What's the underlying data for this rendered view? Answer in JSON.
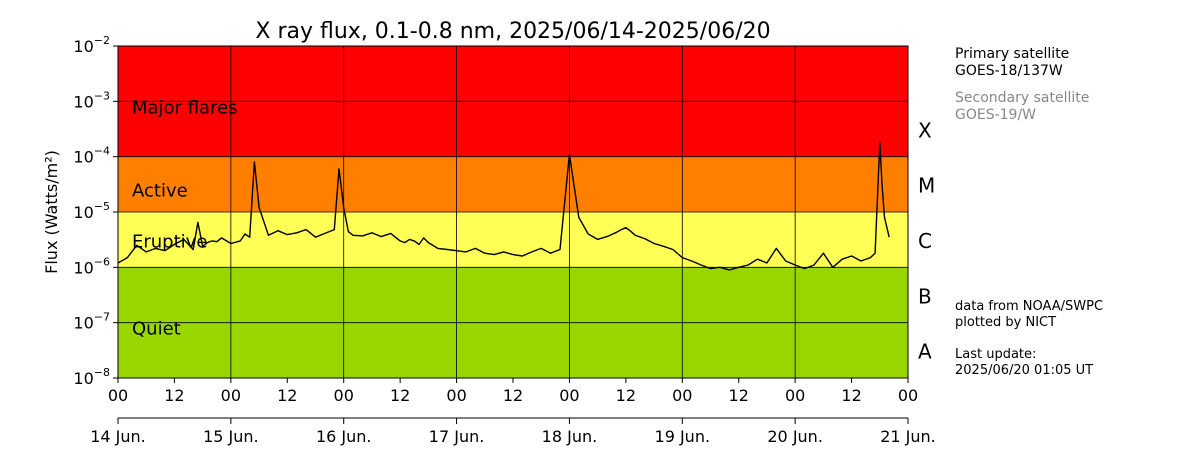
{
  "chart_data": {
    "type": "line",
    "title": "X ray flux, 0.1-0.8 nm, 2025/06/14-2025/06/20",
    "ylabel": "Flux (Watts/m²)",
    "y_scale": "log",
    "ylim": [
      1e-08,
      0.01
    ],
    "y_ticks": [
      {
        "value": 0.01,
        "base": "10",
        "exp": "−2"
      },
      {
        "value": 0.001,
        "base": "10",
        "exp": "−3"
      },
      {
        "value": 0.0001,
        "base": "10",
        "exp": "−4"
      },
      {
        "value": 1e-05,
        "base": "10",
        "exp": "−5"
      },
      {
        "value": 1e-06,
        "base": "10",
        "exp": "−6"
      },
      {
        "value": 1e-07,
        "base": "10",
        "exp": "−7"
      },
      {
        "value": 1e-08,
        "base": "10",
        "exp": "−8"
      }
    ],
    "xlim": [
      "2025-06-14 00:00",
      "2025-06-21 00:00"
    ],
    "x_tick_labels": [
      "00",
      "12",
      "00",
      "12",
      "00",
      "12",
      "00",
      "12",
      "00",
      "12",
      "00",
      "12",
      "00",
      "12",
      "00"
    ],
    "date_labels": [
      "14 Jun.",
      "15 Jun.",
      "16 Jun.",
      "17 Jun.",
      "18 Jun.",
      "19 Jun.",
      "20 Jun.",
      "21 Jun."
    ],
    "grid": true,
    "bands": [
      {
        "label": "Major flares",
        "from": 0.0001,
        "to": 0.01,
        "color": "#ff0000"
      },
      {
        "label": "Active",
        "from": 1e-05,
        "to": 0.0001,
        "color": "#ff7f00"
      },
      {
        "label": "Eruptive",
        "from": 1e-06,
        "to": 1e-05,
        "color": "#ffff55"
      },
      {
        "label": "Quiet",
        "from": 1e-08,
        "to": 1e-06,
        "color": "#99d600"
      }
    ],
    "classes": [
      {
        "label": "X",
        "center": 0.0003
      },
      {
        "label": "M",
        "center": 3e-05
      },
      {
        "label": "C",
        "center": 3e-06
      },
      {
        "label": "B",
        "center": 3e-07
      },
      {
        "label": "A",
        "center": 3e-08
      }
    ],
    "series": [
      {
        "color": "#000000",
        "x_hours": [
          0,
          2,
          4,
          6,
          8,
          10,
          12,
          14,
          16,
          17,
          18,
          19,
          20,
          21,
          22,
          24,
          26,
          27,
          28,
          29,
          30,
          32,
          34,
          36,
          38,
          40,
          42,
          44,
          46,
          47,
          48,
          49,
          50,
          52,
          54,
          56,
          58,
          60,
          61,
          62,
          63,
          64,
          65,
          66,
          68,
          70,
          72,
          74,
          76,
          78,
          80,
          82,
          84,
          86,
          88,
          90,
          92,
          94,
          96,
          98,
          100,
          102,
          104,
          106,
          107,
          108,
          109,
          110,
          112,
          114,
          116,
          118,
          120,
          122,
          124,
          126,
          128,
          130,
          132,
          134,
          136,
          138,
          140,
          142,
          144,
          146,
          148,
          150,
          152,
          154,
          156,
          158,
          160,
          161,
          162,
          162.5,
          163,
          164
        ],
        "y": [
          1.2e-06,
          1.5e-06,
          2.5e-06,
          1.9e-06,
          2.2e-06,
          2e-06,
          2.6e-06,
          3.2e-06,
          2.1e-06,
          6.5e-06,
          2.4e-06,
          2.8e-06,
          3e-06,
          2.9e-06,
          3.4e-06,
          2.7e-06,
          3e-06,
          4e-06,
          3.5e-06,
          8e-05,
          1.2e-05,
          3.8e-06,
          4.6e-06,
          3.9e-06,
          4.2e-06,
          4.8e-06,
          3.5e-06,
          4.1e-06,
          4.8e-06,
          6e-05,
          1.2e-05,
          4.4e-06,
          3.8e-06,
          3.7e-06,
          4.2e-06,
          3.6e-06,
          4.1e-06,
          3e-06,
          2.8e-06,
          3.2e-06,
          3e-06,
          2.6e-06,
          3.4e-06,
          2.8e-06,
          2.2e-06,
          2.1e-06,
          2e-06,
          1.9e-06,
          2.2e-06,
          1.8e-06,
          1.7e-06,
          1.9e-06,
          1.7e-06,
          1.6e-06,
          1.9e-06,
          2.2e-06,
          1.8e-06,
          2.1e-06,
          0.00011,
          8e-06,
          4e-06,
          3.2e-06,
          3.6e-06,
          4.3e-06,
          4.8e-06,
          5.2e-06,
          4.5e-06,
          3.8e-06,
          3.3e-06,
          2.7e-06,
          2.4e-06,
          2.1e-06,
          1.5e-06,
          1.3e-06,
          1.1e-06,
          9.5e-07,
          1e-06,
          9e-07,
          1e-06,
          1.1e-06,
          1.4e-06,
          1.2e-06,
          2.2e-06,
          1.3e-06,
          1.1e-06,
          9.5e-07,
          1.1e-06,
          1.8e-06,
          1e-06,
          1.4e-06,
          1.6e-06,
          1.3e-06,
          1.5e-06,
          1.8e-06,
          0.00018,
          3e-05,
          8e-06,
          3.5e-06
        ]
      }
    ]
  },
  "legend": {
    "primary_label": "Primary satellite",
    "primary_value": "GOES-18/137W",
    "secondary_label": "Secondary satellite",
    "secondary_value": "GOES-19/W"
  },
  "credits": {
    "source": "data from NOAA/SWPC",
    "plotter": "plotted by NICT",
    "update_label": "Last update:",
    "update_value": "2025/06/20 01:05 UT"
  }
}
